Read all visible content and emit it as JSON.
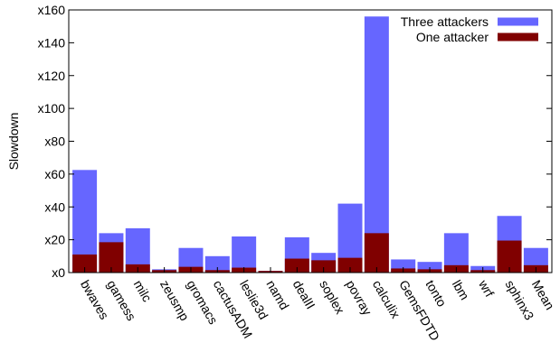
{
  "chart_data": {
    "type": "bar",
    "ylabel": "Slowdown",
    "ylim": [
      0,
      160
    ],
    "yticks": [
      0,
      20,
      40,
      60,
      80,
      100,
      120,
      140,
      160
    ],
    "ytick_labels": [
      "x0",
      "x20",
      "x40",
      "x60",
      "x80",
      "x100",
      "x120",
      "x140",
      "x160"
    ],
    "legend_position": "top-right",
    "categories": [
      "bwaves",
      "gamess",
      "milc",
      "zeusmp",
      "gromacs",
      "cactusADM",
      "leslie3d",
      "namd",
      "dealII",
      "soplex",
      "povray",
      "calculix",
      "GemsFDTD",
      "tonto",
      "lbm",
      "wrf",
      "sphinx3",
      "Mean"
    ],
    "series": [
      {
        "name": "Three attackers",
        "color": "#6666ff",
        "values": [
          62.5,
          24,
          27,
          2,
          15,
          10,
          22,
          1,
          21.5,
          12,
          42,
          156,
          8,
          6.5,
          24,
          4,
          34.5,
          15
        ]
      },
      {
        "name": "One attacker",
        "color": "#800000",
        "values": [
          11,
          18.5,
          5,
          1.5,
          3.5,
          1.5,
          3,
          1,
          8.5,
          7.5,
          9,
          24,
          2.5,
          2,
          4.5,
          1.5,
          19.5,
          4.5
        ]
      }
    ]
  }
}
